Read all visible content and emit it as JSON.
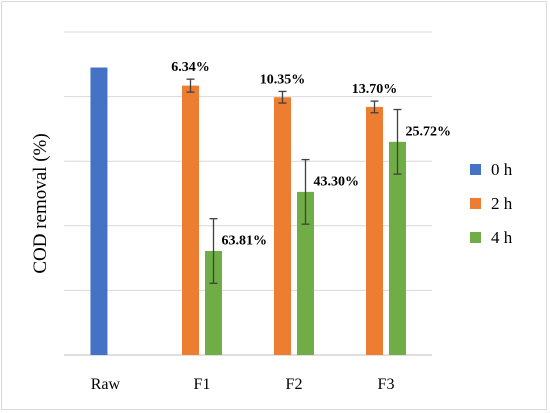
{
  "chart_data": {
    "type": "bar",
    "title": "",
    "xlabel": "",
    "ylabel": "COD removal (%)",
    "ylim": [
      0,
      100
    ],
    "y_ticks_shown": false,
    "grid": true,
    "legend_position": "right",
    "categories": [
      "Raw",
      "F1",
      "F2",
      "F3"
    ],
    "series": [
      {
        "name": "0 h",
        "color": "#4472c4",
        "values": [
          89,
          null,
          null,
          null
        ],
        "errors": [
          0,
          null,
          null,
          null
        ],
        "labels": [
          "",
          "",
          "",
          ""
        ]
      },
      {
        "name": "2 h",
        "color": "#ed7d31",
        "values": [
          null,
          83.4,
          79.8,
          76.8
        ],
        "errors": [
          null,
          2,
          1.8,
          1.8
        ],
        "labels": [
          "",
          "6.34%",
          "10.35%",
          "13.70%"
        ]
      },
      {
        "name": "4 h",
        "color": "#70ad47",
        "values": [
          null,
          32.2,
          50.5,
          66
        ],
        "errors": [
          null,
          10,
          10,
          10
        ],
        "labels": [
          "",
          "63.81%",
          "43.30%",
          "25.72%"
        ]
      }
    ]
  }
}
